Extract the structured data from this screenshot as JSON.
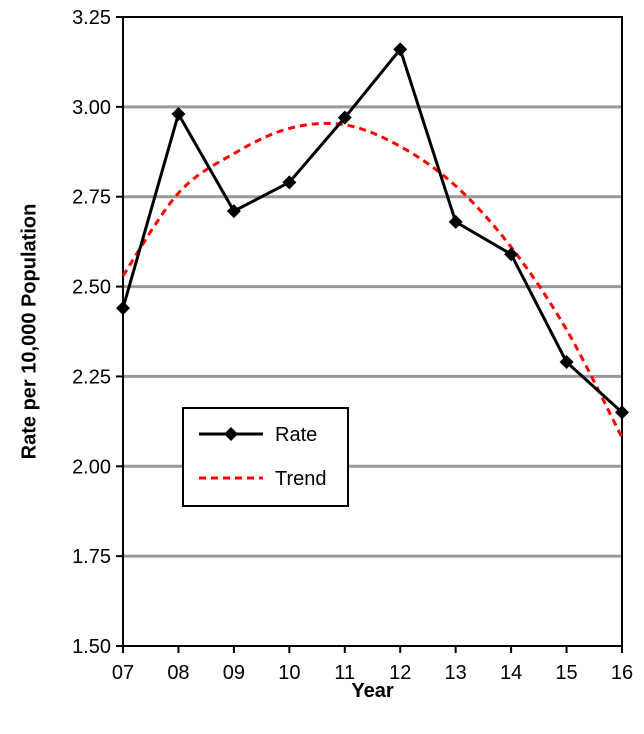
{
  "chart_data": {
    "type": "line",
    "title": "",
    "xlabel": "Year",
    "ylabel": "Rate per 10,000 Population",
    "categories": [
      "07",
      "08",
      "09",
      "10",
      "11",
      "12",
      "13",
      "14",
      "15",
      "16"
    ],
    "ylim": [
      1.5,
      3.25
    ],
    "yticks": [
      "1.50",
      "1.75",
      "2.00",
      "2.25",
      "2.50",
      "2.75",
      "3.00",
      "3.25"
    ],
    "grid": "horizontal",
    "legend_position": "middle-left",
    "series": [
      {
        "name": "Rate",
        "style": "solid-diamond-markers",
        "color": "#000000",
        "values": [
          2.44,
          2.98,
          2.71,
          2.79,
          2.97,
          3.16,
          2.68,
          2.59,
          2.29,
          2.15
        ]
      },
      {
        "name": "Trend",
        "style": "dashed",
        "color": "#ff0000",
        "values": [
          2.53,
          2.76,
          2.87,
          2.94,
          2.95,
          2.89,
          2.78,
          2.61,
          2.38,
          2.08
        ]
      }
    ]
  }
}
